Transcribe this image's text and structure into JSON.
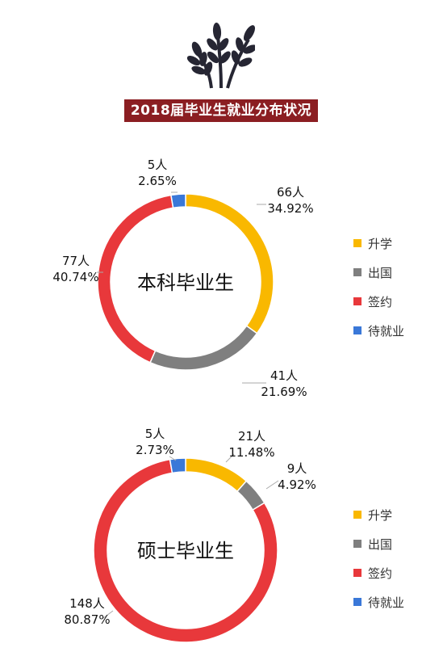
{
  "header": {
    "title": "2018届毕业生就业分布状况"
  },
  "legend": {
    "items": [
      {
        "label": "升学",
        "color": "#f9b800"
      },
      {
        "label": "出国",
        "color": "#7f7f7f"
      },
      {
        "label": "签约",
        "color": "#e8383b"
      },
      {
        "label": "待就业",
        "color": "#3a78d8"
      }
    ]
  },
  "chart_data": [
    {
      "type": "pie",
      "donut": true,
      "center_label": "本科毕业生",
      "slices": [
        {
          "category": "升学",
          "count": "66人",
          "percent": "34.92%",
          "value": 34.92,
          "color": "#f9b800"
        },
        {
          "category": "出国",
          "count": "41人",
          "percent": "21.69%",
          "value": 21.69,
          "color": "#7f7f7f"
        },
        {
          "category": "签约",
          "count": "77人",
          "percent": "40.74%",
          "value": 40.74,
          "color": "#e8383b"
        },
        {
          "category": "待就业",
          "count": "5人",
          "percent": "2.65%",
          "value": 2.65,
          "color": "#3a78d8"
        }
      ],
      "legend_position": "right"
    },
    {
      "type": "pie",
      "donut": true,
      "center_label": "硕士毕业生",
      "slices": [
        {
          "category": "升学",
          "count": "21人",
          "percent": "11.48%",
          "value": 11.48,
          "color": "#f9b800"
        },
        {
          "category": "出国",
          "count": "9人",
          "percent": "4.92%",
          "value": 4.92,
          "color": "#7f7f7f"
        },
        {
          "category": "签约",
          "count": "148人",
          "percent": "80.87%",
          "value": 80.87,
          "color": "#e8383b"
        },
        {
          "category": "待就业",
          "count": "5人",
          "percent": "2.73%",
          "value": 2.73,
          "color": "#3a78d8"
        }
      ],
      "legend_position": "right"
    }
  ]
}
